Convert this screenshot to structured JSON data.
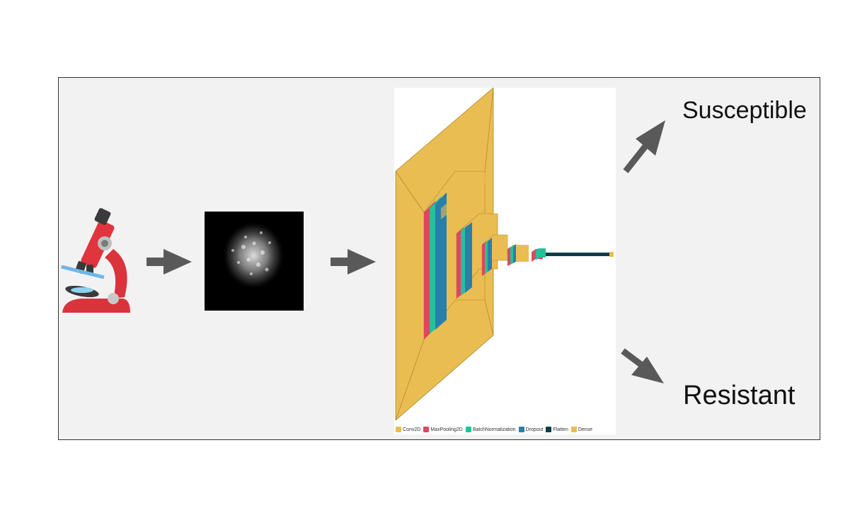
{
  "outputs": {
    "susceptible": "Susceptible",
    "resistant": "Resistant"
  },
  "legend": [
    {
      "label": "Conv2D",
      "color": "#eabd52"
    },
    {
      "label": "MaxPooling2D",
      "color": "#e0465f"
    },
    {
      "label": "BatchNormalization",
      "color": "#22c29a"
    },
    {
      "label": "Dropout",
      "color": "#2a7fa8"
    },
    {
      "label": "Flatten",
      "color": "#0f3d47"
    },
    {
      "label": "Dense",
      "color": "#eabd52"
    }
  ],
  "colors": {
    "frame_bg": "#f2f2f2",
    "arrow": "#595959",
    "conv": "#eabd52",
    "pool": "#e0465f",
    "batchnorm": "#22c29a",
    "dropout": "#2a7fa8",
    "flatten": "#0f3d47"
  },
  "icons": [
    "microscope-icon",
    "right-arrow-icon",
    "up-right-arrow-icon",
    "down-right-arrow-icon"
  ]
}
